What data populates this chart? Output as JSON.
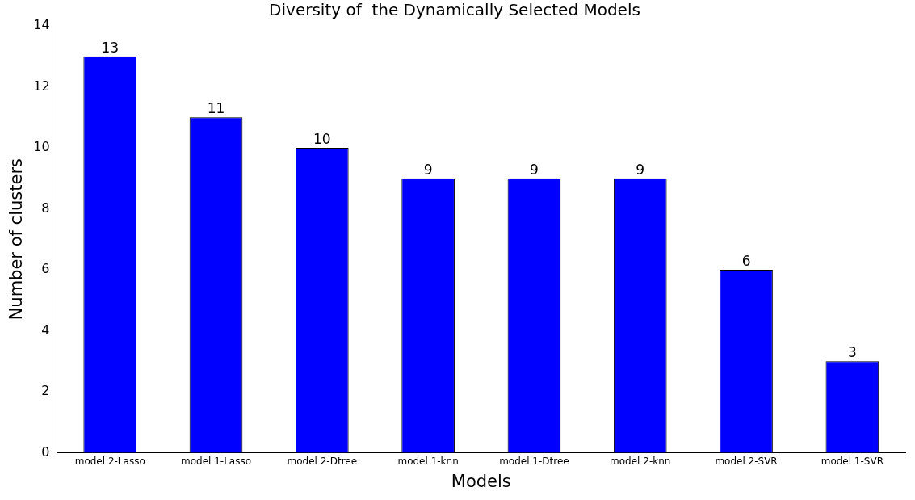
{
  "chart_data": {
    "type": "bar",
    "title": "Diversity of  the Dynamically Selected Models",
    "xlabel": "Models",
    "ylabel": "Number of clusters",
    "categories": [
      "model 2-Lasso",
      "model 1-Lasso",
      "model 2-Dtree",
      "model 1-knn",
      "model 1-Dtree",
      "model 2-knn",
      "model 2-SVR",
      "model 1-SVR"
    ],
    "values": [
      13,
      11,
      10,
      9,
      9,
      9,
      6,
      3
    ],
    "color": "#0000ff",
    "ylim": [
      0,
      14
    ],
    "yticks": [
      0,
      2,
      4,
      6,
      8,
      10,
      12,
      14
    ],
    "grid": false,
    "legend": false,
    "data_labels": true
  }
}
